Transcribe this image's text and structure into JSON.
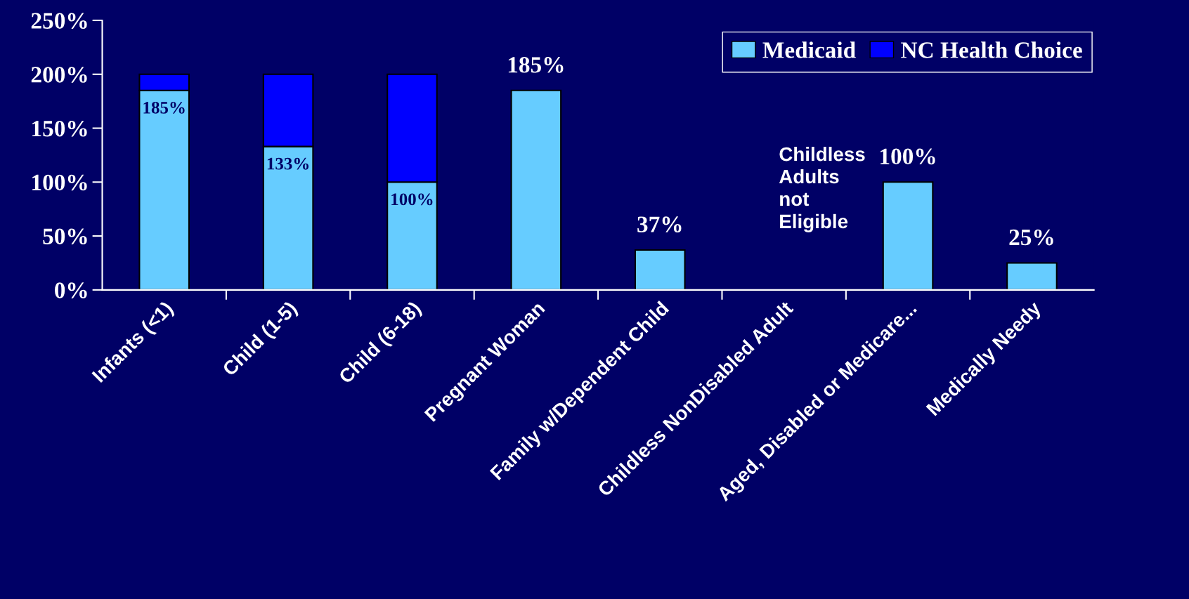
{
  "chart_data": {
    "type": "bar",
    "stacked": true,
    "categories": [
      "Infants (<1)",
      "Child (1-5)",
      "Child (6-18)",
      "Pregnant Woman",
      "Family w/Dependent Child",
      "Childless NonDisabled Adult",
      "Aged, Disabled or Medicare...",
      "Medically Needy"
    ],
    "series": [
      {
        "name": "Medicaid",
        "color": "#66ccff",
        "values": [
          185,
          133,
          100,
          185,
          37,
          null,
          100,
          25
        ],
        "value_labels": [
          "185%",
          "133%",
          "100%",
          "185%",
          "37%",
          null,
          "100%",
          "25%"
        ]
      },
      {
        "name": "NC Health Choice",
        "color": "#0000ff",
        "values": [
          15,
          67,
          100,
          null,
          null,
          null,
          null,
          null
        ]
      }
    ],
    "ylim": [
      0,
      250
    ],
    "yticks": [
      {
        "value": 0,
        "label": "0%"
      },
      {
        "value": 50,
        "label": "50%"
      },
      {
        "value": 100,
        "label": "100%"
      },
      {
        "value": 150,
        "label": "150%"
      },
      {
        "value": 200,
        "label": "200%"
      },
      {
        "value": 250,
        "label": "250%"
      }
    ],
    "grid": false,
    "legend": "top right",
    "annotations": [
      "Childless\nAdults\nnot\nEligible"
    ]
  }
}
